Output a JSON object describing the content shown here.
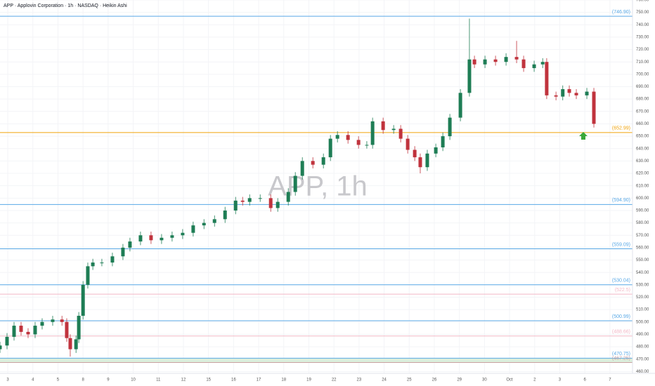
{
  "chart_data": {
    "type": "candlestick",
    "title": "APP · Applovin Corporation · 1h · NASDAQ · Heikin Ashi",
    "watermark": "APP, 1h",
    "up_color": "#1e7d55",
    "down_color": "#c0333d",
    "x": [
      -0.31,
      -0.03,
      0.25,
      0.53,
      0.81,
      1.09,
      1.37,
      1.79,
      2.16,
      2.35,
      2.49,
      2.72,
      2.83,
      3.0,
      3.19,
      3.39,
      3.75,
      4.17,
      4.59,
      4.87,
      5.29,
      5.71,
      6.13,
      6.55,
      6.97,
      7.39,
      7.82,
      8.24,
      8.66,
      9.08,
      9.36,
      9.64,
      10.06,
      10.48,
      10.76,
      11.18,
      11.46,
      11.74,
      12.16,
      12.58,
      12.86,
      13.14,
      13.56,
      13.98,
      14.31,
      14.54,
      14.96,
      15.38,
      15.66,
      15.94,
      16.22,
      16.44,
      16.72,
      17.06,
      17.34,
      17.62,
      18.04,
      18.4,
      18.6,
      19.02,
      19.44,
      19.86,
      20.28,
      20.56,
      20.98,
      21.32,
      21.48,
      21.85,
      22.12,
      22.38,
      22.66,
      23.08,
      23.36
    ],
    "open": [
      478,
      481,
      488,
      497,
      492,
      490,
      497,
      500,
      502,
      500,
      487,
      478,
      486,
      505,
      530,
      545,
      548,
      548,
      553,
      560,
      565,
      570,
      566,
      568,
      570,
      572,
      578,
      580,
      583,
      590,
      598,
      597,
      600,
      600,
      592,
      597,
      605,
      618,
      630,
      627,
      633,
      648,
      651,
      647,
      643,
      643,
      662,
      655,
      656,
      648,
      639,
      633,
      625,
      636,
      641,
      650,
      665,
      685,
      712,
      708,
      712,
      710,
      714,
      712,
      705,
      708,
      710,
      683,
      682,
      688,
      685,
      683,
      686
    ],
    "high": [
      484,
      491,
      500,
      500,
      495,
      500,
      503,
      505,
      505,
      503,
      490,
      489,
      508,
      533,
      548,
      551,
      551,
      556,
      563,
      568,
      573,
      573,
      571,
      573,
      575,
      581,
      583,
      586,
      593,
      601,
      601,
      603,
      603,
      603,
      600,
      608,
      621,
      633,
      633,
      636,
      651,
      654,
      654,
      650,
      646,
      665,
      665,
      659,
      659,
      651,
      642,
      636,
      639,
      644,
      653,
      668,
      688,
      745,
      715,
      715,
      715,
      717,
      727,
      715,
      711,
      713,
      713,
      686,
      691,
      691,
      688,
      689,
      689
    ],
    "low": [
      475,
      478,
      485,
      489,
      487,
      487,
      494,
      497,
      497,
      484,
      472,
      475,
      483,
      502,
      527,
      542,
      545,
      545,
      550,
      557,
      562,
      563,
      563,
      565,
      567,
      569,
      575,
      577,
      580,
      587,
      594,
      594,
      597,
      589,
      589,
      594,
      602,
      615,
      624,
      624,
      630,
      645,
      644,
      640,
      640,
      640,
      652,
      652,
      645,
      636,
      630,
      620,
      622,
      633,
      638,
      647,
      662,
      682,
      705,
      705,
      707,
      707,
      709,
      702,
      702,
      705,
      680,
      679,
      679,
      682,
      680,
      680,
      657
    ],
    "close": [
      481,
      488,
      497,
      492,
      490,
      497,
      500,
      502,
      500,
      487,
      478,
      486,
      505,
      530,
      545,
      548,
      548,
      553,
      560,
      565,
      570,
      566,
      568,
      570,
      572,
      578,
      580,
      583,
      590,
      598,
      597,
      600,
      600,
      592,
      597,
      605,
      618,
      630,
      627,
      633,
      648,
      651,
      647,
      643,
      643,
      662,
      655,
      656,
      648,
      639,
      633,
      625,
      636,
      641,
      650,
      665,
      685,
      712,
      708,
      712,
      710,
      714,
      712,
      705,
      708,
      710,
      683,
      682,
      688,
      685,
      683,
      686,
      660
    ],
    "xlim": [
      -0.31,
      24.9
    ],
    "xticks": [
      {
        "value": 0,
        "label": "3"
      },
      {
        "value": 1,
        "label": "4"
      },
      {
        "value": 2,
        "label": "5"
      },
      {
        "value": 3,
        "label": "8"
      },
      {
        "value": 4,
        "label": "9"
      },
      {
        "value": 5,
        "label": "10"
      },
      {
        "value": 6,
        "label": "11"
      },
      {
        "value": 7,
        "label": "12"
      },
      {
        "value": 8,
        "label": "15"
      },
      {
        "value": 9,
        "label": "16"
      },
      {
        "value": 10,
        "label": "17"
      },
      {
        "value": 11,
        "label": "18"
      },
      {
        "value": 12,
        "label": "19"
      },
      {
        "value": 13,
        "label": "22"
      },
      {
        "value": 14,
        "label": "23"
      },
      {
        "value": 15,
        "label": "24"
      },
      {
        "value": 16,
        "label": "25"
      },
      {
        "value": 17,
        "label": "26"
      },
      {
        "value": 18,
        "label": "29"
      },
      {
        "value": 19,
        "label": "30"
      },
      {
        "value": 20,
        "label": "Oct"
      },
      {
        "value": 21,
        "label": "2"
      },
      {
        "value": 22,
        "label": "3"
      },
      {
        "value": 23,
        "label": "6"
      },
      {
        "value": 24,
        "label": "7"
      }
    ],
    "ylim": [
      458.5,
      760
    ],
    "yticks": [
      {
        "value": 460,
        "label": "460.00"
      },
      {
        "value": 470,
        "label": "470.00"
      },
      {
        "value": 480,
        "label": "480.00"
      },
      {
        "value": 490,
        "label": "490.00"
      },
      {
        "value": 500,
        "label": "500.00"
      },
      {
        "value": 510,
        "label": "510.00"
      },
      {
        "value": 520,
        "label": "520.00"
      },
      {
        "value": 530,
        "label": "530.00"
      },
      {
        "value": 540,
        "label": "540.00"
      },
      {
        "value": 550,
        "label": "550.00"
      },
      {
        "value": 560,
        "label": "560.00"
      },
      {
        "value": 570,
        "label": "570.00"
      },
      {
        "value": 580,
        "label": "580.00"
      },
      {
        "value": 590,
        "label": "590.00"
      },
      {
        "value": 600,
        "label": "600.00"
      },
      {
        "value": 610,
        "label": "610.00"
      },
      {
        "value": 620,
        "label": "620.00"
      },
      {
        "value": 630,
        "label": "630.00"
      },
      {
        "value": 640,
        "label": "640.00"
      },
      {
        "value": 650,
        "label": "650.00"
      },
      {
        "value": 660,
        "label": "660.00"
      },
      {
        "value": 670,
        "label": "670.00"
      },
      {
        "value": 680,
        "label": "680.00"
      },
      {
        "value": 690,
        "label": "690.00"
      },
      {
        "value": 700,
        "label": "700.00"
      },
      {
        "value": 710,
        "label": "710.00"
      },
      {
        "value": 720,
        "label": "720.00"
      },
      {
        "value": 730,
        "label": "730.00"
      },
      {
        "value": 740,
        "label": "740.00"
      },
      {
        "value": 750,
        "label": "750.00"
      },
      {
        "value": 760,
        "label": "760.00"
      }
    ],
    "levels": [
      {
        "value": 746.9,
        "label": "(746.90)",
        "color": "#5aa9e6"
      },
      {
        "value": 652.99,
        "label": "(652.99)",
        "color": "#f0a30a"
      },
      {
        "value": 594.9,
        "label": "(594.90)",
        "color": "#5aa9e6"
      },
      {
        "value": 559.09,
        "label": "(559.09)",
        "color": "#5aa9e6"
      },
      {
        "value": 530.04,
        "label": "(530.04)",
        "color": "#5aa9e6"
      },
      {
        "value": 522.5,
        "label": "(522.5)",
        "color": "#f2b8c6"
      },
      {
        "value": 500.99,
        "label": "(500.99)",
        "color": "#5aa9e6"
      },
      {
        "value": 488.66,
        "label": "(488.66)",
        "color": "#f2b8c6"
      },
      {
        "value": 470.75,
        "label": "(470.75)",
        "color": "#5aa9e6"
      },
      {
        "value": 467.25,
        "label": "(467.25)",
        "color": "#c9a0a0"
      }
    ],
    "zone_color": "#dcefdc"
  }
}
